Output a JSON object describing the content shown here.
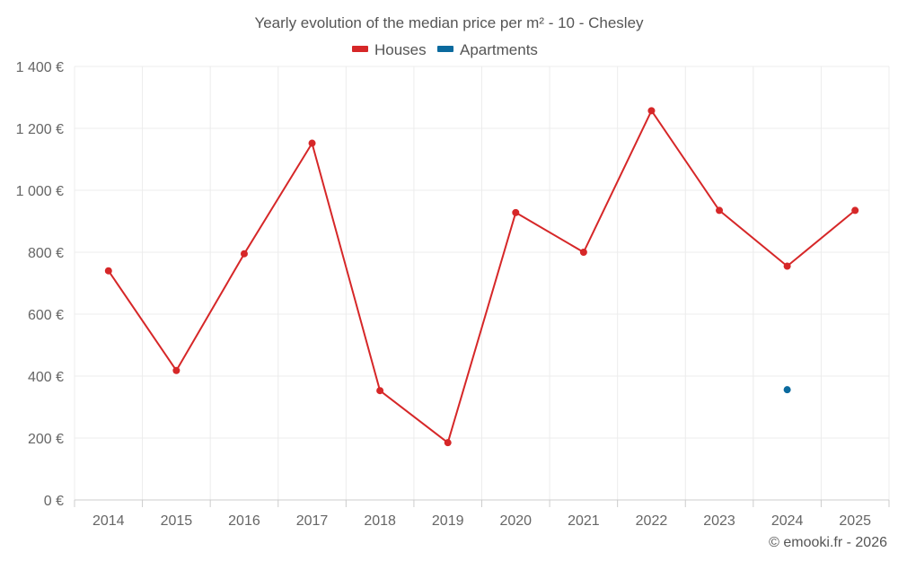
{
  "chart_data": {
    "type": "line",
    "title": "Yearly evolution of the median price per m² - 10 - Chesley",
    "categories": [
      "2014",
      "2015",
      "2016",
      "2017",
      "2018",
      "2019",
      "2020",
      "2021",
      "2022",
      "2023",
      "2024",
      "2025"
    ],
    "series": [
      {
        "name": "Houses",
        "color": "#d62728",
        "values": [
          740,
          418,
          795,
          1152,
          353,
          185,
          928,
          800,
          1257,
          935,
          755,
          935
        ]
      },
      {
        "name": "Apartments",
        "color": "#0b6a9e",
        "values": [
          null,
          null,
          null,
          null,
          null,
          null,
          null,
          null,
          null,
          null,
          356,
          null
        ]
      }
    ],
    "ylim": [
      0,
      1400
    ],
    "yticks": [
      0,
      200,
      400,
      600,
      800,
      1000,
      1200,
      1400
    ],
    "ytick_labels": [
      "0 €",
      "200 €",
      "400 €",
      "600 €",
      "800 €",
      "1 000 €",
      "1 200 €",
      "1 400 €"
    ],
    "xlabel": "",
    "ylabel": "",
    "grid": true,
    "legend_position": "top-center",
    "credit": "© emooki.fr - 2026"
  }
}
